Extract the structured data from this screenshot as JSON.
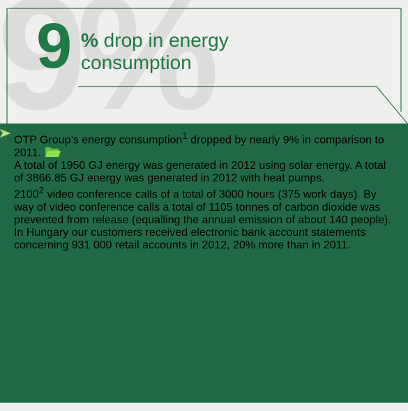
{
  "header": {
    "watermark": "9%",
    "number": "9",
    "title_bold": "%",
    "title_rest": " drop in energy consumption"
  },
  "bullets": [
    {
      "segments": [
        {
          "text": "OTP Group’s energy consumption"
        },
        {
          "text": "1",
          "sup": true
        },
        {
          "text": " dropped by nearly "
        },
        {
          "text": "9%",
          "bold": true
        },
        {
          "text": " in comparison to 2011."
        }
      ],
      "icon": true
    },
    {
      "segments": [
        {
          "text": "A total of "
        },
        {
          "text": "1950 GJ",
          "bold": true
        },
        {
          "text": " energy was generated in 2012 using solar energy. A total of "
        },
        {
          "text": "3866.85 GJ",
          "bold": true
        },
        {
          "text": " energy was generated in 2012 with heat pumps."
        }
      ]
    },
    {
      "segments": [
        {
          "text": "2100",
          "bold": true
        },
        {
          "text": "2",
          "sup": true
        },
        {
          "text": " video  conference calls",
          "bold": true
        },
        {
          "text": " of a total of "
        },
        {
          "text": "3000 hours",
          "bold": true
        },
        {
          "text": " (375 work days). By way of video conference calls a total of "
        },
        {
          "text": "1105 tonnes",
          "bold": true
        },
        {
          "text": " of carbon dioxide was prevented from re­lease (equalling the annual emission of about 140 people)."
        }
      ]
    },
    {
      "segments": [
        {
          "text": "In Hungary our customers received electronic bank ac­count statements concerning "
        },
        {
          "text": "931 000",
          "bold": true
        },
        {
          "text": " retail accounts in 2012, "
        },
        {
          "text": "20%",
          "bold": true
        },
        {
          "text": " more than in 2011."
        }
      ]
    }
  ]
}
